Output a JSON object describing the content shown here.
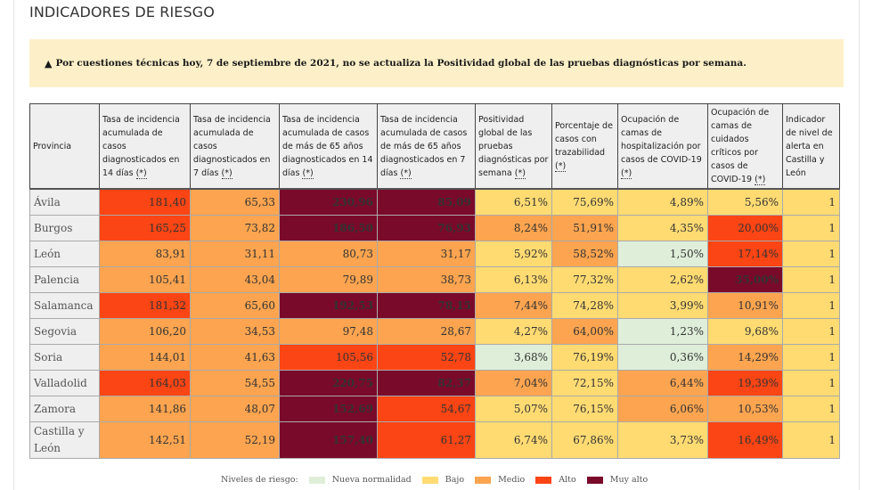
{
  "page": {
    "title": "INDICADORES DE RIESGO"
  },
  "notice": {
    "icon": "warning-triangle-icon",
    "text": "Por cuestiones técnicas hoy, 7 de septiembre de 2021, no se actualiza la Positividad global de las pruebas diagnósticas por semana."
  },
  "levels": {
    "n": {
      "label": "Nueva normalidad",
      "color": "#dfeed9"
    },
    "b": {
      "label": "Bajo",
      "color": "#ffdb72"
    },
    "m": {
      "label": "Medio",
      "color": "#fca44f"
    },
    "a": {
      "label": "Alto",
      "color": "#fc4514"
    },
    "ma": {
      "label": "Muy alto",
      "color": "#7a0a2a"
    }
  },
  "table": {
    "asterisk": "(*)",
    "headers": [
      {
        "text": "Provincia",
        "note": false
      },
      {
        "text": "Tasa de incidencia acumulada de casos diagnosticados en 14 días",
        "note": true
      },
      {
        "text": "Tasa de incidencia acumulada de casos diagnosticados en 7 días",
        "note": true
      },
      {
        "text": "Tasa de incidencia acumulada de casos de más de 65 años diagnosticados en 14 días",
        "note": true
      },
      {
        "text": "Tasa de incidencia acumulada de casos de más de 65 años diagnosticados en 7 días",
        "note": true
      },
      {
        "text": "Positividad global de las pruebas diagnósticas por semana",
        "note": true
      },
      {
        "text": "Porcentaje de casos con trazabilidad",
        "note": true
      },
      {
        "text": "Ocupación de camas de hospitalización por casos de COVID-19",
        "note": true
      },
      {
        "text": "Ocupación de camas de cuidados críticos por casos de COVID-19",
        "note": true
      },
      {
        "text": "Indicador de nivel de alerta en Castilla y León",
        "note": false
      }
    ],
    "rows": [
      {
        "province": "Ávila",
        "cells": [
          [
            "181,40",
            "a"
          ],
          [
            "65,33",
            "m"
          ],
          [
            "230,96",
            "ma"
          ],
          [
            "85,09",
            "ma"
          ],
          [
            "6,51%",
            "b"
          ],
          [
            "75,69%",
            "b"
          ],
          [
            "4,89%",
            "b"
          ],
          [
            "5,56%",
            "b"
          ],
          [
            "1",
            "b"
          ]
        ]
      },
      {
        "province": "Burgos",
        "cells": [
          [
            "165,25",
            "a"
          ],
          [
            "73,82",
            "m"
          ],
          [
            "186,50",
            "ma"
          ],
          [
            "76,93",
            "ma"
          ],
          [
            "8,24%",
            "m"
          ],
          [
            "51,91%",
            "m"
          ],
          [
            "4,35%",
            "b"
          ],
          [
            "20,00%",
            "a"
          ],
          [
            "1",
            "b"
          ]
        ]
      },
      {
        "province": "León",
        "cells": [
          [
            "83,91",
            "m"
          ],
          [
            "31,11",
            "m"
          ],
          [
            "80,73",
            "m"
          ],
          [
            "31,17",
            "m"
          ],
          [
            "5,92%",
            "b"
          ],
          [
            "58,52%",
            "m"
          ],
          [
            "1,50%",
            "n"
          ],
          [
            "17,14%",
            "a"
          ],
          [
            "1",
            "b"
          ]
        ]
      },
      {
        "province": "Palencia",
        "cells": [
          [
            "105,41",
            "m"
          ],
          [
            "43,04",
            "m"
          ],
          [
            "79,89",
            "m"
          ],
          [
            "38,73",
            "m"
          ],
          [
            "6,13%",
            "b"
          ],
          [
            "77,32%",
            "b"
          ],
          [
            "2,62%",
            "b"
          ],
          [
            "35,00%",
            "ma"
          ],
          [
            "1",
            "b"
          ]
        ]
      },
      {
        "province": "Salamanca",
        "cells": [
          [
            "181,32",
            "a"
          ],
          [
            "65,60",
            "m"
          ],
          [
            "192,53",
            "ma"
          ],
          [
            "78,15",
            "ma"
          ],
          [
            "7,44%",
            "m"
          ],
          [
            "74,28%",
            "b"
          ],
          [
            "3,99%",
            "b"
          ],
          [
            "10,91%",
            "m"
          ],
          [
            "1",
            "b"
          ]
        ]
      },
      {
        "province": "Segovia",
        "cells": [
          [
            "106,20",
            "m"
          ],
          [
            "34,53",
            "m"
          ],
          [
            "97,48",
            "m"
          ],
          [
            "28,67",
            "m"
          ],
          [
            "4,27%",
            "b"
          ],
          [
            "64,00%",
            "m"
          ],
          [
            "1,23%",
            "n"
          ],
          [
            "9,68%",
            "b"
          ],
          [
            "1",
            "b"
          ]
        ]
      },
      {
        "province": "Soria",
        "cells": [
          [
            "144,01",
            "m"
          ],
          [
            "41,63",
            "m"
          ],
          [
            "105,56",
            "a"
          ],
          [
            "52,78",
            "a"
          ],
          [
            "3,68%",
            "n"
          ],
          [
            "76,19%",
            "b"
          ],
          [
            "0,36%",
            "n"
          ],
          [
            "14,29%",
            "m"
          ],
          [
            "1",
            "b"
          ]
        ]
      },
      {
        "province": "Valladolid",
        "cells": [
          [
            "164,03",
            "a"
          ],
          [
            "54,55",
            "m"
          ],
          [
            "220,75",
            "ma"
          ],
          [
            "82,37",
            "ma"
          ],
          [
            "7,04%",
            "m"
          ],
          [
            "72,15%",
            "b"
          ],
          [
            "6,44%",
            "m"
          ],
          [
            "19,39%",
            "a"
          ],
          [
            "1",
            "b"
          ]
        ]
      },
      {
        "province": "Zamora",
        "cells": [
          [
            "141,86",
            "m"
          ],
          [
            "48,07",
            "m"
          ],
          [
            "152,69",
            "ma"
          ],
          [
            "54,67",
            "a"
          ],
          [
            "5,07%",
            "b"
          ],
          [
            "76,15%",
            "b"
          ],
          [
            "6,06%",
            "m"
          ],
          [
            "10,53%",
            "m"
          ],
          [
            "1",
            "b"
          ]
        ]
      },
      {
        "province": "Castilla y León",
        "cells": [
          [
            "142,51",
            "m"
          ],
          [
            "52,19",
            "m"
          ],
          [
            "157,40",
            "ma"
          ],
          [
            "61,27",
            "a"
          ],
          [
            "6,74%",
            "b"
          ],
          [
            "67,86%",
            "b"
          ],
          [
            "3,73%",
            "b"
          ],
          [
            "16,49%",
            "a"
          ],
          [
            "1",
            "b"
          ]
        ]
      }
    ]
  },
  "legend": {
    "label": "Niveles de riesgo:",
    "order": [
      "n",
      "b",
      "m",
      "a",
      "ma"
    ]
  }
}
